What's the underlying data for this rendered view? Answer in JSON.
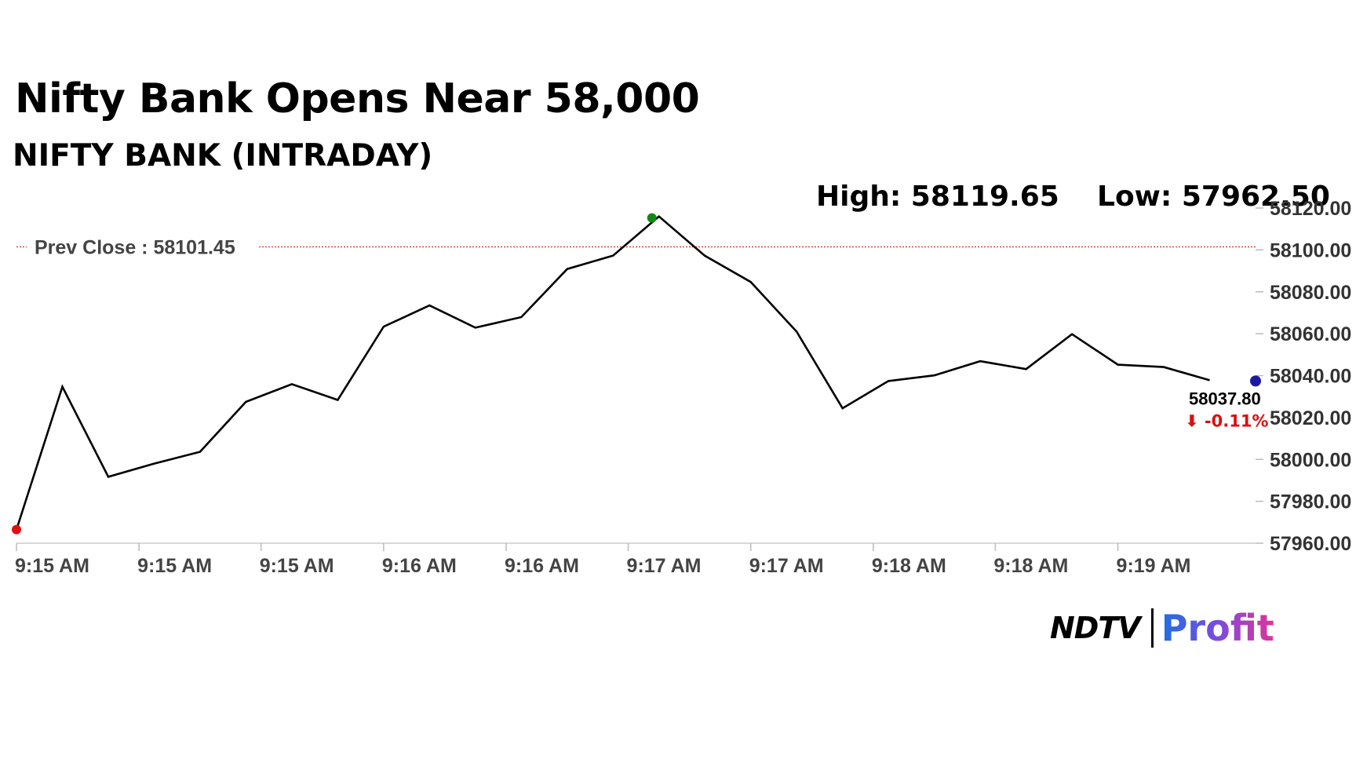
{
  "header": {
    "title": "Nifty Bank Opens Near 58,000",
    "subtitle": "NIFTY BANK (INTRADAY)",
    "high_text": "High: 58119.65",
    "low_text": "Low: 57962.50"
  },
  "logo": {
    "ndtv": "NDTV",
    "profit": "Profit"
  },
  "chart_data": {
    "type": "line",
    "title": "NIFTY BANK (INTRADAY)",
    "xlabel": "",
    "ylabel": "",
    "ylim": [
      57960,
      58120
    ],
    "yticks": [
      57960,
      57980,
      58000,
      58020,
      58040,
      58060,
      58080,
      58100,
      58120
    ],
    "ytick_labels": [
      "57960.00",
      "57980.00",
      "58000.00",
      "58020.00",
      "58040.00",
      "58060.00",
      "58080.00",
      "58100.00",
      "58120.00"
    ],
    "xtick_labels": [
      "9:15 AM",
      "9:15 AM",
      "9:15 AM",
      "9:16 AM",
      "9:16 AM",
      "9:17 AM",
      "9:17 AM",
      "9:18 AM",
      "9:18 AM",
      "9:19 AM"
    ],
    "xlim": [
      0,
      27
    ],
    "xtick_positions": [
      0,
      2.67,
      5.33,
      8,
      10.67,
      13.33,
      16,
      18.67,
      21.33,
      24
    ],
    "series": [
      {
        "values": [
          57966.5,
          58034.7,
          57991.7,
          57998,
          58003.6,
          58027.5,
          58035.9,
          58028.4,
          58063.4,
          58073.5,
          58062.9,
          58067.9,
          58090.9,
          58097.3,
          58116,
          58097.2,
          58084.7,
          58061,
          58024.4,
          58037.4,
          58040.1,
          58046.9,
          58043.1,
          58059.8,
          58045.2,
          58044.1,
          58037.8
        ],
        "color": "#000000"
      }
    ],
    "prev_close": {
      "label": "Prev Close : 58101.45",
      "value": 58101.45,
      "color": "#d32f2f"
    },
    "markers": {
      "low": {
        "index": 0,
        "color": "#e01010"
      },
      "high": {
        "index": 14,
        "color": "#118811"
      },
      "last": {
        "color": "#1a1aa0"
      }
    },
    "last_value_label": "58037.80",
    "change_label": "⬇ -0.11%",
    "change_color": "#d81010",
    "grid": false,
    "legend": "none"
  }
}
